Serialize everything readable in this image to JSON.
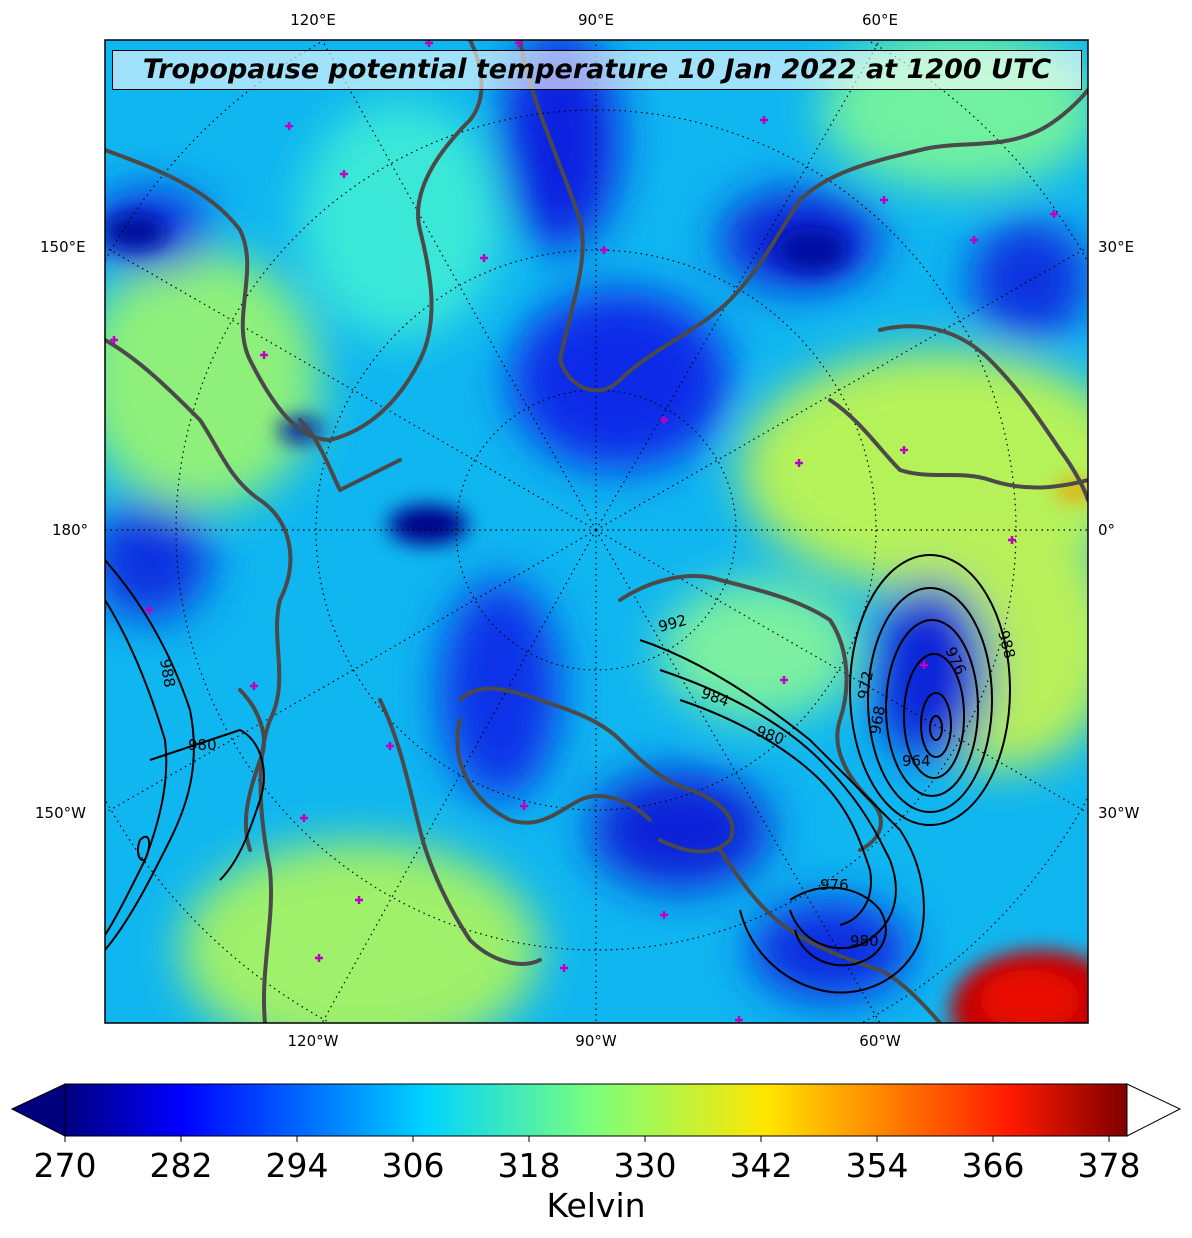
{
  "title": "Tropopause potential temperature 10 Jan 2022 at 1200 UTC",
  "lon_ticks": {
    "top": [
      "120°E",
      "90°E",
      "60°E"
    ],
    "bottom": [
      "120°W",
      "90°W",
      "60°W"
    ],
    "left": [
      "150°E",
      "180°",
      "150°W"
    ],
    "right": [
      "30°E",
      "0°",
      "30°W"
    ]
  },
  "colorbar": {
    "unit": "Kelvin",
    "ticks": [
      "270",
      "282",
      "294",
      "306",
      "318",
      "330",
      "342",
      "354",
      "366",
      "378"
    ],
    "extend": "both",
    "colormap": "jet"
  },
  "pressure_labels": [
    "988",
    "980",
    "992",
    "984",
    "980",
    "972",
    "968",
    "976",
    "964",
    "988",
    "976",
    "980"
  ],
  "colors": {
    "coastline": "#4a4a4a",
    "contours": "#000000",
    "station_markers": "#c000c0"
  }
}
